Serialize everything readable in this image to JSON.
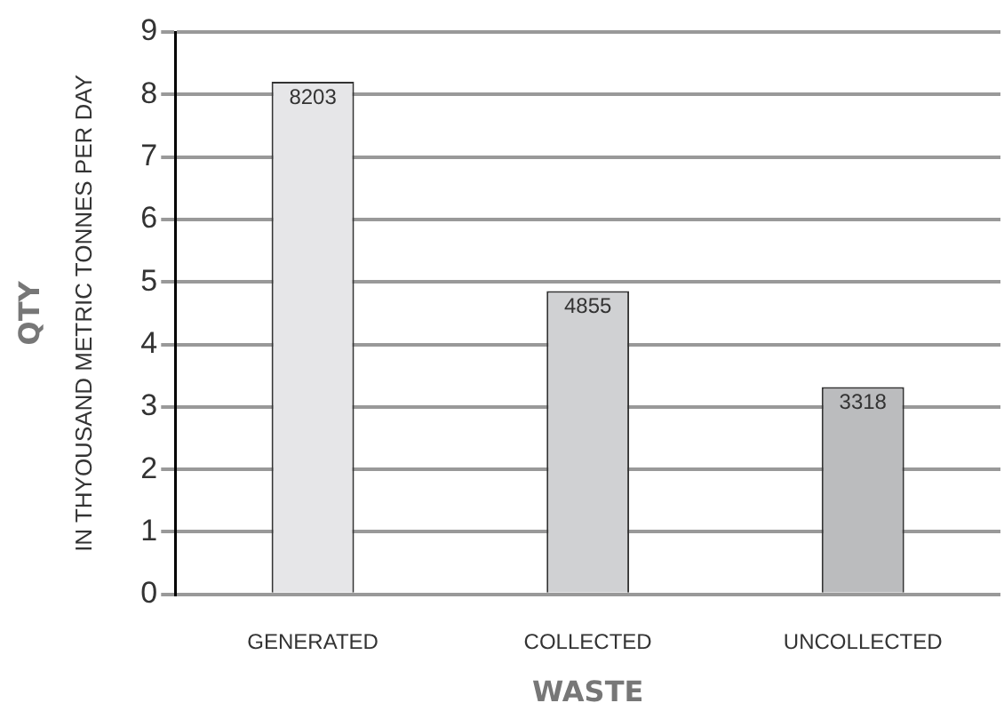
{
  "chart_data": {
    "type": "bar",
    "categories": [
      "GENERATED",
      "COLLECTED",
      "UNCOLLECTED"
    ],
    "values": [
      8.203,
      4.855,
      3.318
    ],
    "colors": [
      "#e6e6e8",
      "#d0d1d3",
      "#bbbcbe"
    ],
    "xlabel": "WASTE",
    "ylabel": "QTY",
    "annotations": [
      "IN THYOUSAND METRIC TONNES PER DAY",
      {
        "text": "8203",
        "x": "GENERATED",
        "y": 8.203
      },
      {
        "text": "4855",
        "x": "COLLECTED",
        "y": 4.855
      },
      {
        "text": "3318",
        "x": "UNCOLLECTED",
        "y": 3.318
      }
    ],
    "ylim": [
      0,
      9
    ],
    "yticks": [
      0,
      1,
      2,
      3,
      4,
      5,
      6,
      7,
      8,
      9
    ],
    "grid": "y",
    "legend": false
  }
}
